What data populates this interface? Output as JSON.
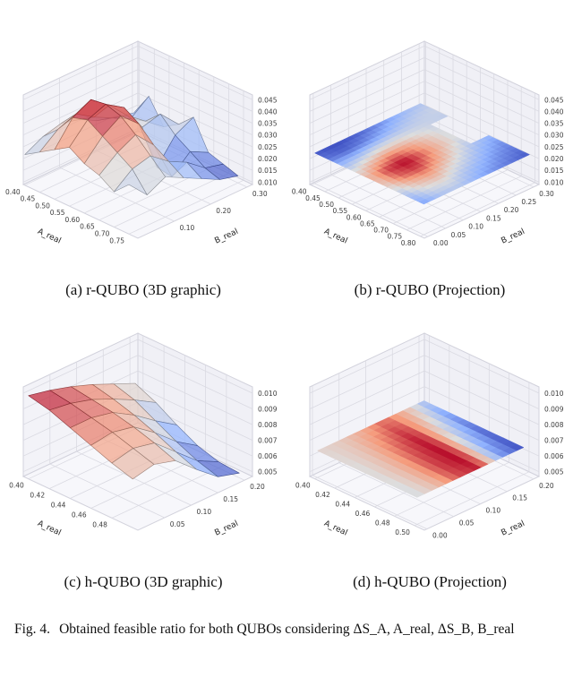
{
  "page": {
    "fig_label": "Fig. 4.",
    "fig_text": "Obtained feasible ratio for both QUBOs considering ΔS_A, A_real, ΔS_B, B_real"
  },
  "chart_data": [
    {
      "id": "a",
      "type": "surface3d",
      "caption": "(a) r-QUBO (3D graphic)",
      "xlabel": "A_real",
      "ylabel": "B_real",
      "colormap": "coolwarm",
      "x_tick_labels": [
        "0.40",
        "0.45",
        "0.50",
        "0.55",
        "0.60",
        "0.65",
        "0.70",
        "0.75"
      ],
      "y_tick_labels": [
        "0.10",
        "0.20",
        "0.30"
      ],
      "z_tick_labels": [
        "0.010",
        "0.015",
        "0.020",
        "0.025",
        "0.030",
        "0.035",
        "0.040",
        "0.045"
      ],
      "x_lim": [
        0.395,
        0.78
      ],
      "y_lim": [
        0.0,
        0.315
      ],
      "z_lim": [
        0.009,
        0.047
      ],
      "render": {
        "mode": "mesh",
        "alpha": 0.72
      },
      "surface": {
        "x_vals": [
          0.4,
          0.45,
          0.5,
          0.55,
          0.6,
          0.65,
          0.7,
          0.75
        ],
        "y_vals": [
          0.0,
          0.05,
          0.1,
          0.15,
          0.2,
          0.25,
          0.3
        ],
        "z_grid": [
          [
            0.022,
            0.026,
            0.028,
            0.026,
            0.022,
            0.02,
            0.018
          ],
          [
            0.026,
            0.032,
            0.035,
            0.03,
            0.026,
            0.022,
            0.028
          ],
          [
            0.03,
            0.04,
            0.044,
            0.038,
            0.03,
            0.024,
            0.018
          ],
          [
            0.034,
            0.042,
            0.045,
            0.04,
            0.028,
            0.03,
            0.022
          ],
          [
            0.03,
            0.038,
            0.043,
            0.036,
            0.014,
            0.024,
            0.028
          ],
          [
            0.028,
            0.034,
            0.038,
            0.03,
            0.013,
            0.02,
            0.016
          ],
          [
            0.024,
            0.03,
            0.032,
            0.026,
            0.022,
            0.016,
            0.014
          ],
          [
            0.03,
            0.022,
            0.026,
            0.022,
            0.018,
            0.014,
            0.012
          ]
        ]
      }
    },
    {
      "id": "b",
      "type": "surface3d",
      "caption": "(b) r-QUBO (Projection)",
      "xlabel": "A_real",
      "ylabel": "B_real",
      "colormap": "coolwarm",
      "x_tick_labels": [
        "0.40",
        "0.45",
        "0.50",
        "0.55",
        "0.60",
        "0.65",
        "0.70",
        "0.75",
        "0.80"
      ],
      "y_tick_labels": [
        "0.00",
        "0.05",
        "0.10",
        "0.15",
        "0.20",
        "0.25",
        "0.30"
      ],
      "z_tick_labels": [
        "0.010",
        "0.015",
        "0.020",
        "0.025",
        "0.030",
        "0.035",
        "0.040",
        "0.045"
      ],
      "x_lim": [
        0.395,
        0.815
      ],
      "y_lim": [
        -0.01,
        0.315
      ],
      "z_lim": [
        0.009,
        0.047
      ],
      "render": {
        "mode": "smooth",
        "alpha": 1,
        "flat_z": 0.34
      },
      "surface": {
        "x_vals": [
          0.4,
          0.45,
          0.5,
          0.55,
          0.6,
          0.65,
          0.7,
          0.75,
          0.8
        ],
        "y_vals": [
          0.0,
          0.05,
          0.1,
          0.15,
          0.2,
          0.25,
          0.3
        ],
        "z_grid": [
          [
            0.014,
            0.013,
            0.014,
            0.016,
            0.019,
            0.022,
            0.024
          ],
          [
            0.016,
            0.015,
            0.017,
            0.02,
            0.023,
            0.025,
            0.026
          ],
          [
            0.022,
            0.024,
            0.027,
            0.028,
            0.027,
            0.026,
            0.025
          ],
          [
            0.028,
            0.033,
            0.037,
            0.035,
            0.031,
            0.027,
            null
          ],
          [
            0.032,
            0.04,
            0.043,
            0.038,
            0.032,
            0.027,
            null
          ],
          [
            0.03,
            0.038,
            0.04,
            0.035,
            0.029,
            0.024,
            0.021
          ],
          [
            0.026,
            0.032,
            0.034,
            0.029,
            0.025,
            0.021,
            0.018
          ],
          [
            0.022,
            0.027,
            0.028,
            0.024,
            0.021,
            0.018,
            0.016
          ],
          [
            0.019,
            0.023,
            0.024,
            0.021,
            0.018,
            0.016,
            0.014
          ]
        ]
      }
    },
    {
      "id": "c",
      "type": "surface3d",
      "caption": "(c) h-QUBO (3D graphic)",
      "xlabel": "A_real",
      "ylabel": "B_real",
      "colormap": "coolwarm",
      "x_tick_labels": [
        "0.40",
        "0.42",
        "0.44",
        "0.46",
        "0.48"
      ],
      "y_tick_labels": [
        "0.05",
        "0.10",
        "0.15",
        "0.20"
      ],
      "z_tick_labels": [
        "0.005",
        "0.006",
        "0.007",
        "0.008",
        "0.009",
        "0.010"
      ],
      "x_lim": [
        0.395,
        0.505
      ],
      "y_lim": [
        0.0,
        0.215
      ],
      "z_lim": [
        0.0047,
        0.0104
      ],
      "render": {
        "mode": "mesh",
        "alpha": 0.72
      },
      "surface": {
        "x_vals": [
          0.4,
          0.42,
          0.44,
          0.46,
          0.48,
          0.5
        ],
        "y_vals": [
          0.0,
          0.04,
          0.08,
          0.12,
          0.16,
          0.2
        ],
        "z_grid": [
          [
            0.01,
            0.0097,
            0.0093,
            0.0088,
            0.0082,
            0.0076
          ],
          [
            0.0097,
            0.0095,
            0.0091,
            0.0085,
            0.0078,
            0.007
          ],
          [
            0.0092,
            0.0092,
            0.0089,
            0.0081,
            0.0071,
            0.0062
          ],
          [
            0.0087,
            0.0089,
            0.0086,
            0.0076,
            0.0064,
            0.0055
          ],
          [
            0.0082,
            0.0085,
            0.0082,
            0.007,
            0.0058,
            0.0051
          ],
          [
            0.0078,
            0.0081,
            0.0077,
            0.0065,
            0.0054,
            0.005
          ]
        ]
      }
    },
    {
      "id": "d",
      "type": "surface3d",
      "caption": "(d) h-QUBO (Projection)",
      "xlabel": "A_real",
      "ylabel": "B_real",
      "colormap": "coolwarm",
      "x_tick_labels": [
        "0.40",
        "0.42",
        "0.44",
        "0.46",
        "0.48",
        "0.50"
      ],
      "y_tick_labels": [
        "0.00",
        "0.05",
        "0.10",
        "0.15",
        "0.20"
      ],
      "z_tick_labels": [
        "0.005",
        "0.006",
        "0.007",
        "0.008",
        "0.009",
        "0.010"
      ],
      "x_lim": [
        0.395,
        0.51
      ],
      "y_lim": [
        -0.005,
        0.21
      ],
      "z_lim": [
        0.0047,
        0.0104
      ],
      "render": {
        "mode": "smooth",
        "alpha": 1,
        "flat_z": 0.3
      },
      "surface": {
        "x_vals": [
          0.4,
          0.42,
          0.44,
          0.46,
          0.48,
          0.5
        ],
        "y_vals": [
          0.0,
          0.04,
          0.08,
          0.12,
          0.16,
          0.2
        ],
        "z_grid": [
          [
            0.0076,
            0.0078,
            0.0083,
            0.009,
            0.0082,
            0.0066
          ],
          [
            0.0075,
            0.0079,
            0.0087,
            0.0094,
            0.0079,
            0.006
          ],
          [
            0.0074,
            0.008,
            0.009,
            0.0097,
            0.0074,
            0.0056
          ],
          [
            0.0074,
            0.0081,
            0.0092,
            0.0098,
            0.0069,
            0.0053
          ],
          [
            0.0073,
            0.0081,
            0.0093,
            0.0098,
            0.0064,
            0.0052
          ],
          [
            0.0073,
            0.008,
            0.0092,
            0.0096,
            0.006,
            0.0051
          ]
        ]
      }
    }
  ]
}
